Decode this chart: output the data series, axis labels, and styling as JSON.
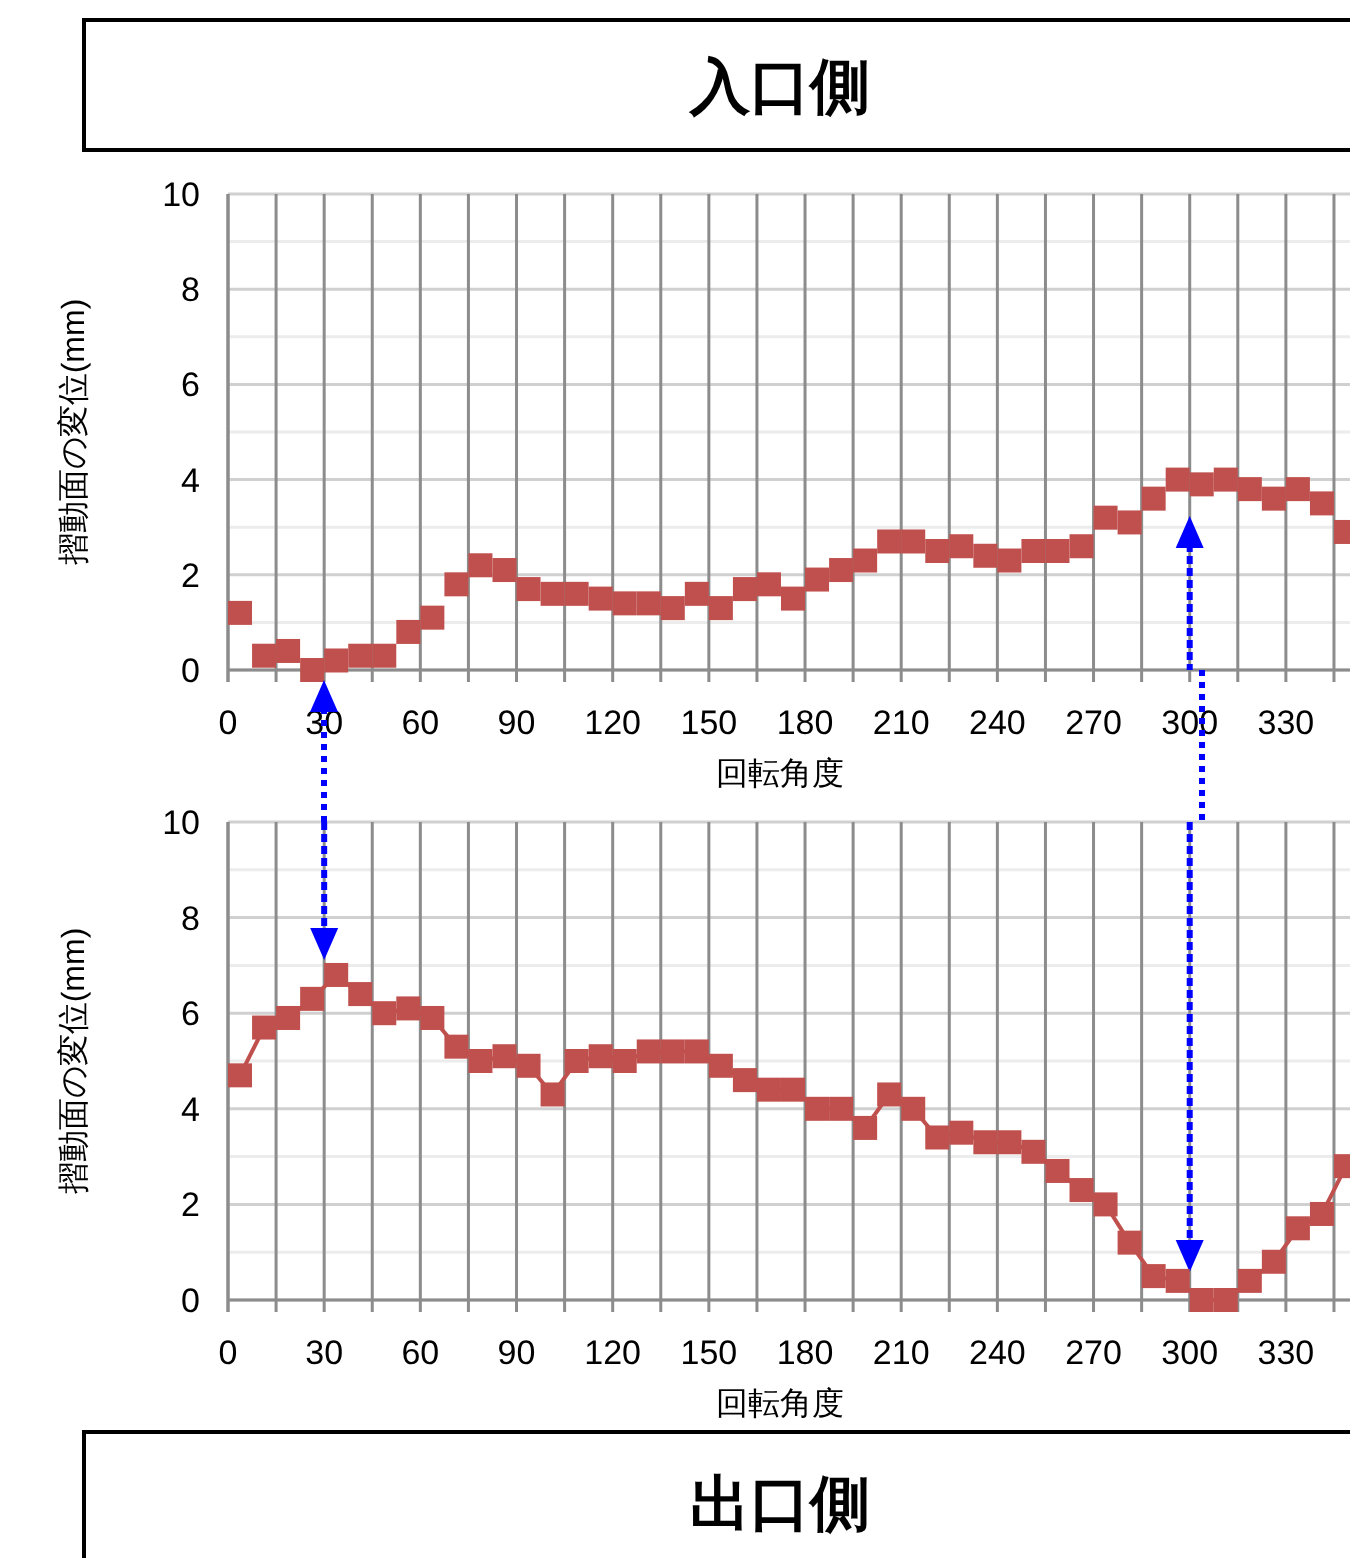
{
  "chart_data": [
    {
      "type": "scatter",
      "title": "入口側",
      "xlabel": "回転角度",
      "ylabel": "摺動面の変位(mm)",
      "marker": "square",
      "grid": true,
      "x": [
        3.75,
        11.25,
        18.75,
        26.25,
        33.75,
        41.25,
        48.75,
        56.25,
        63.75,
        71.25,
        78.75,
        86.25,
        93.75,
        101.25,
        108.75,
        116.25,
        123.75,
        131.25,
        138.75,
        146.25,
        153.75,
        161.25,
        168.75,
        176.25,
        183.75,
        191.25,
        198.75,
        206.25,
        213.75,
        221.25,
        228.75,
        236.25,
        243.75,
        251.25,
        258.75,
        266.25,
        273.75,
        281.25,
        288.75,
        296.25,
        303.75,
        311.25,
        318.75,
        326.25,
        333.75,
        341.25,
        348.75
      ],
      "series": [
        {
          "color": "#c0504d",
          "values": [
            1.2,
            0.3,
            0.4,
            0,
            0.2,
            0.3,
            0.3,
            0.8,
            1.1,
            1.8,
            2.2,
            2.1,
            1.7,
            1.6,
            1.6,
            1.5,
            1.4,
            1.4,
            1.3,
            1.6,
            1.3,
            1.7,
            1.8,
            1.5,
            1.9,
            2.1,
            2.3,
            2.7,
            2.7,
            2.5,
            2.6,
            2.4,
            2.3,
            2.5,
            2.5,
            2.6,
            3.2,
            3.1,
            3.6,
            4.0,
            3.9,
            4.0,
            3.8,
            3.6,
            3.8,
            3.5,
            2.9
          ]
        }
      ],
      "xlim": [
        0,
        350
      ],
      "ylim": [
        0,
        10
      ],
      "xticks": [
        0,
        {
          "value": 15,
          "label": null
        },
        30,
        {
          "value": 45,
          "label": null
        },
        60,
        {
          "value": 75,
          "label": null
        },
        90,
        {
          "value": 105,
          "label": null
        },
        120,
        {
          "value": 135,
          "label": null
        },
        150,
        {
          "value": 165,
          "label": null
        },
        180,
        {
          "value": 195,
          "label": null
        },
        210,
        {
          "value": 225,
          "label": null
        },
        240,
        {
          "value": 255,
          "label": null
        },
        270,
        {
          "value": 285,
          "label": null
        },
        300,
        {
          "value": 315,
          "label": null
        },
        330,
        {
          "value": 345,
          "label": null
        }
      ],
      "yticks": [
        0,
        {
          "value": 1,
          "label": null
        },
        2,
        {
          "value": 3,
          "label": null
        },
        4,
        {
          "value": 5,
          "label": null
        },
        6,
        {
          "value": 7,
          "label": null
        },
        8,
        {
          "value": 9,
          "label": null
        },
        10
      ],
      "ref_lines": [
        {
          "axis": "x",
          "value": 300,
          "color": "#0000ff",
          "line_style": "dotted"
        }
      ]
    },
    {
      "type": "line",
      "title": "出口側",
      "xlabel": "回転角度",
      "ylabel": "摺動面の変位(mm)",
      "marker": "square",
      "line_style": "solid",
      "grid": true,
      "x": [
        3.75,
        11.25,
        18.75,
        26.25,
        33.75,
        41.25,
        48.75,
        56.25,
        63.75,
        71.25,
        78.75,
        86.25,
        93.75,
        101.25,
        108.75,
        116.25,
        123.75,
        131.25,
        138.75,
        146.25,
        153.75,
        161.25,
        168.75,
        176.25,
        183.75,
        191.25,
        198.75,
        206.25,
        213.75,
        221.25,
        228.75,
        236.25,
        243.75,
        251.25,
        258.75,
        266.25,
        273.75,
        281.25,
        288.75,
        296.25,
        303.75,
        311.25,
        318.75,
        326.25,
        333.75,
        341.25,
        348.75
      ],
      "series": [
        {
          "color": "#c0504d",
          "values": [
            4.7,
            5.7,
            5.9,
            6.3,
            6.8,
            6.4,
            6.0,
            6.1,
            5.9,
            5.3,
            5.0,
            5.1,
            4.9,
            4.3,
            5.0,
            5.1,
            5.0,
            5.2,
            5.2,
            5.2,
            4.9,
            4.6,
            4.4,
            4.4,
            4.0,
            4.0,
            3.6,
            4.3,
            4.0,
            3.4,
            3.5,
            3.3,
            3.3,
            3.1,
            2.7,
            2.3,
            2.0,
            1.2,
            0.5,
            0.4,
            0,
            0,
            0.4,
            0.8,
            1.5,
            1.8,
            2.8
          ]
        }
      ],
      "xlim": [
        0,
        350
      ],
      "ylim": [
        0,
        10
      ],
      "xticks": [
        0,
        {
          "value": 15,
          "label": null
        },
        30,
        {
          "value": 45,
          "label": null
        },
        60,
        {
          "value": 75,
          "label": null
        },
        90,
        {
          "value": 105,
          "label": null
        },
        120,
        {
          "value": 135,
          "label": null
        },
        150,
        {
          "value": 165,
          "label": null
        },
        180,
        {
          "value": 195,
          "label": null
        },
        210,
        {
          "value": 225,
          "label": null
        },
        240,
        {
          "value": 255,
          "label": null
        },
        270,
        {
          "value": 285,
          "label": null
        },
        300,
        {
          "value": 315,
          "label": null
        },
        330,
        {
          "value": 345,
          "label": null
        }
      ],
      "yticks": [
        0,
        {
          "value": 1,
          "label": null
        },
        2,
        {
          "value": 3,
          "label": null
        },
        4,
        {
          "value": 5,
          "label": null
        },
        6,
        {
          "value": 7,
          "label": null
        },
        8,
        {
          "value": 9,
          "label": null
        },
        10
      ],
      "ref_lines": [
        {
          "axis": "x",
          "value": 30,
          "color": "#0000ff",
          "line_style": "dotted"
        },
        {
          "axis": "x",
          "value": 300,
          "color": "#0000ff",
          "line_style": "dotted"
        }
      ]
    }
  ]
}
